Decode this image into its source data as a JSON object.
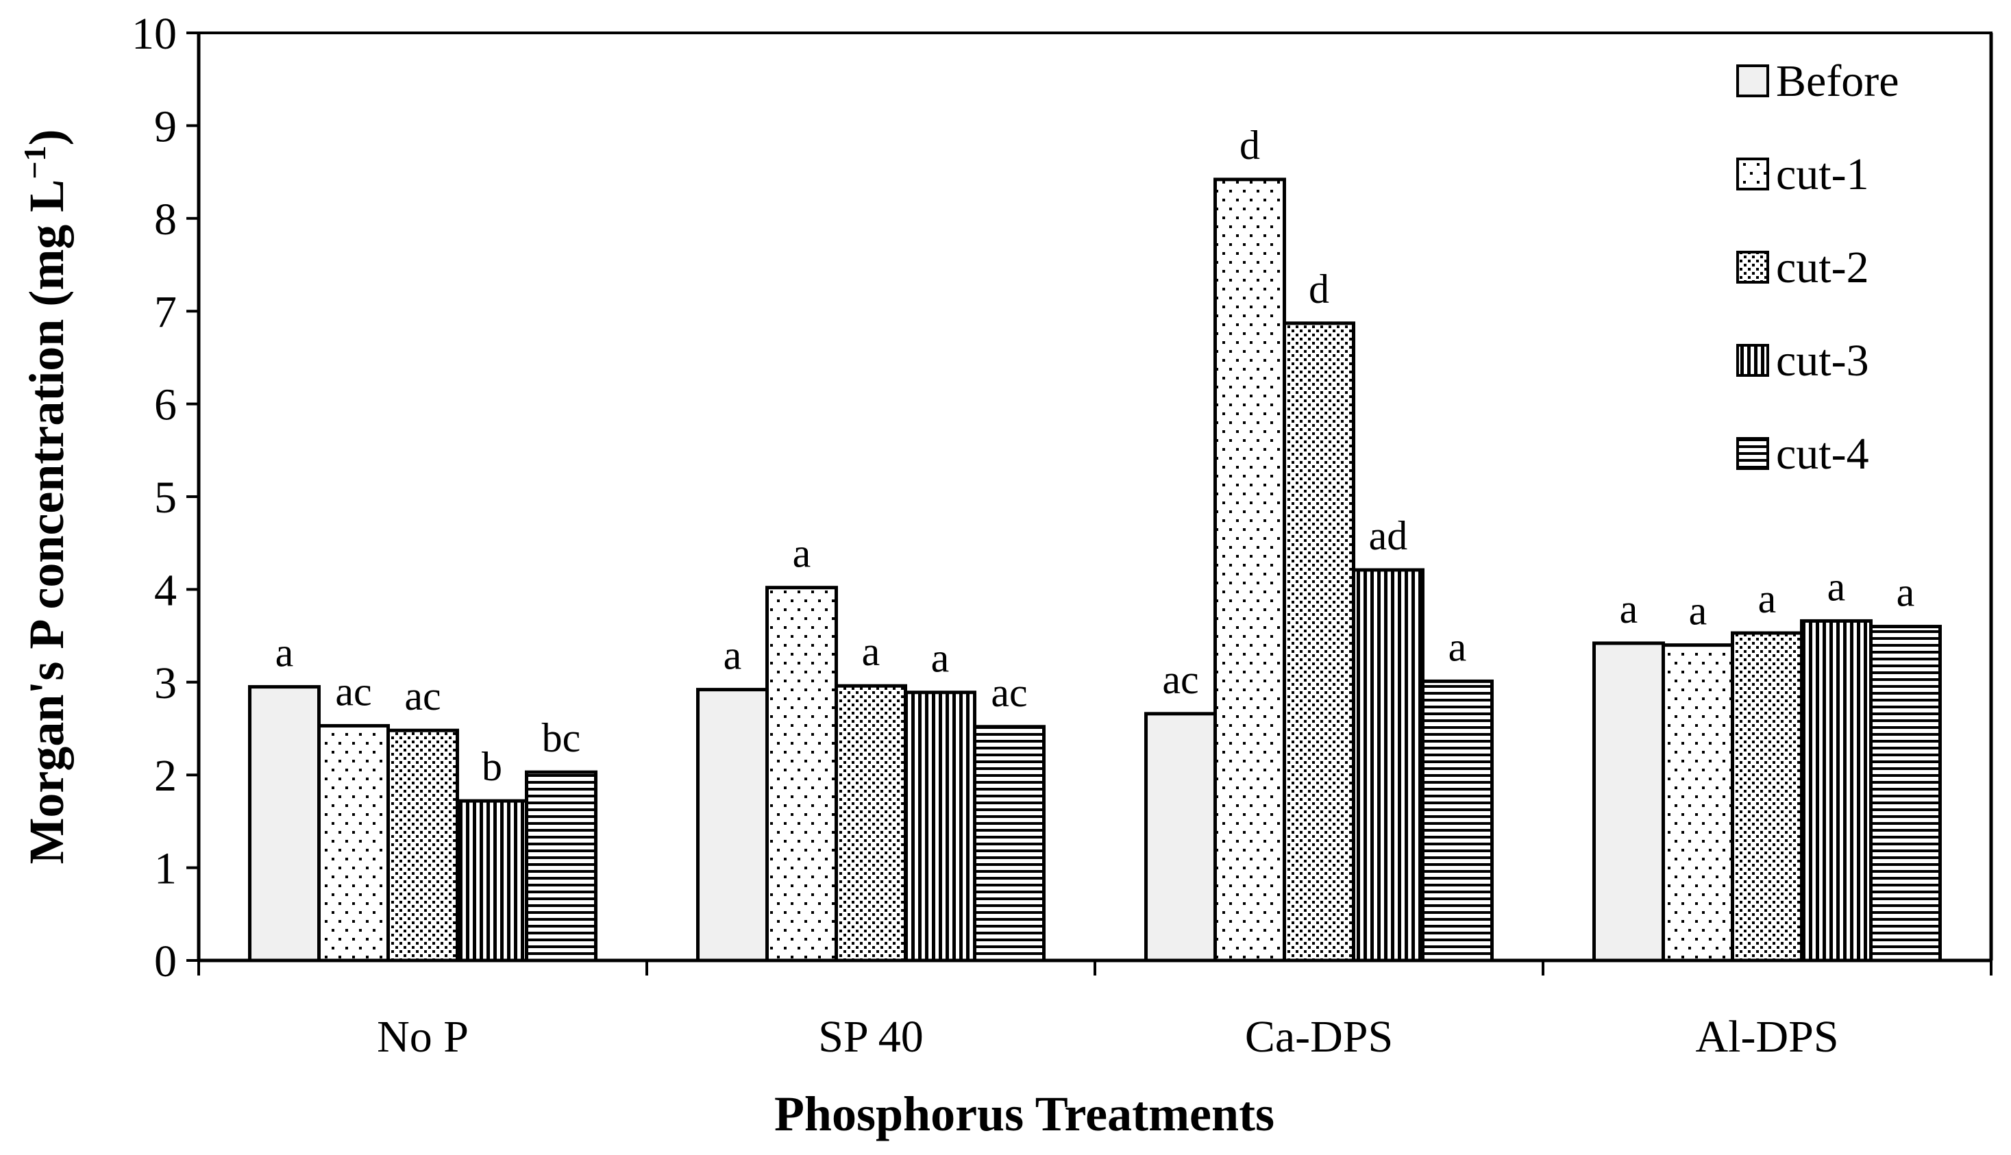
{
  "chart_data": {
    "type": "bar",
    "title": "",
    "xlabel": "Phosphorus Treatments",
    "ylabel": "Morgan's P concentration (mg L",
    "ylabel_sup": "−1",
    "ylabel_close": ")",
    "ylim": [
      0,
      10
    ],
    "yticks": [
      "0",
      "1",
      "2",
      "3",
      "4",
      "5",
      "6",
      "7",
      "8",
      "9",
      "10"
    ],
    "grid": false,
    "legend_position": "top-right",
    "categories": [
      "No P",
      "SP 40",
      "Ca-DPS",
      "Al-DPS"
    ],
    "series": [
      {
        "name": "Before",
        "pattern": "solid",
        "values": [
          2.95,
          2.92,
          2.66,
          3.42
        ],
        "labels": [
          "a",
          "a",
          "ac",
          "a"
        ]
      },
      {
        "name": "cut-1",
        "pattern": "sparse-dots",
        "values": [
          2.53,
          4.02,
          8.42,
          3.4
        ],
        "labels": [
          "ac",
          "a",
          "d",
          "a"
        ]
      },
      {
        "name": "cut-2",
        "pattern": "dense-dots",
        "values": [
          2.48,
          2.96,
          6.87,
          3.53
        ],
        "labels": [
          "ac",
          "a",
          "d",
          "a"
        ]
      },
      {
        "name": "cut-3",
        "pattern": "vertical-lines",
        "values": [
          1.72,
          2.89,
          4.21,
          3.66
        ],
        "labels": [
          "b",
          "a",
          "ad",
          "a"
        ]
      },
      {
        "name": "cut-4",
        "pattern": "horizontal-lines",
        "values": [
          2.03,
          2.52,
          3.01,
          3.6
        ],
        "labels": [
          "bc",
          "ac",
          "a",
          "a"
        ]
      }
    ],
    "colors": {
      "before_fill": "#f0f0f0",
      "bar_stroke": "#000000",
      "pattern_ink": "#000000"
    }
  }
}
